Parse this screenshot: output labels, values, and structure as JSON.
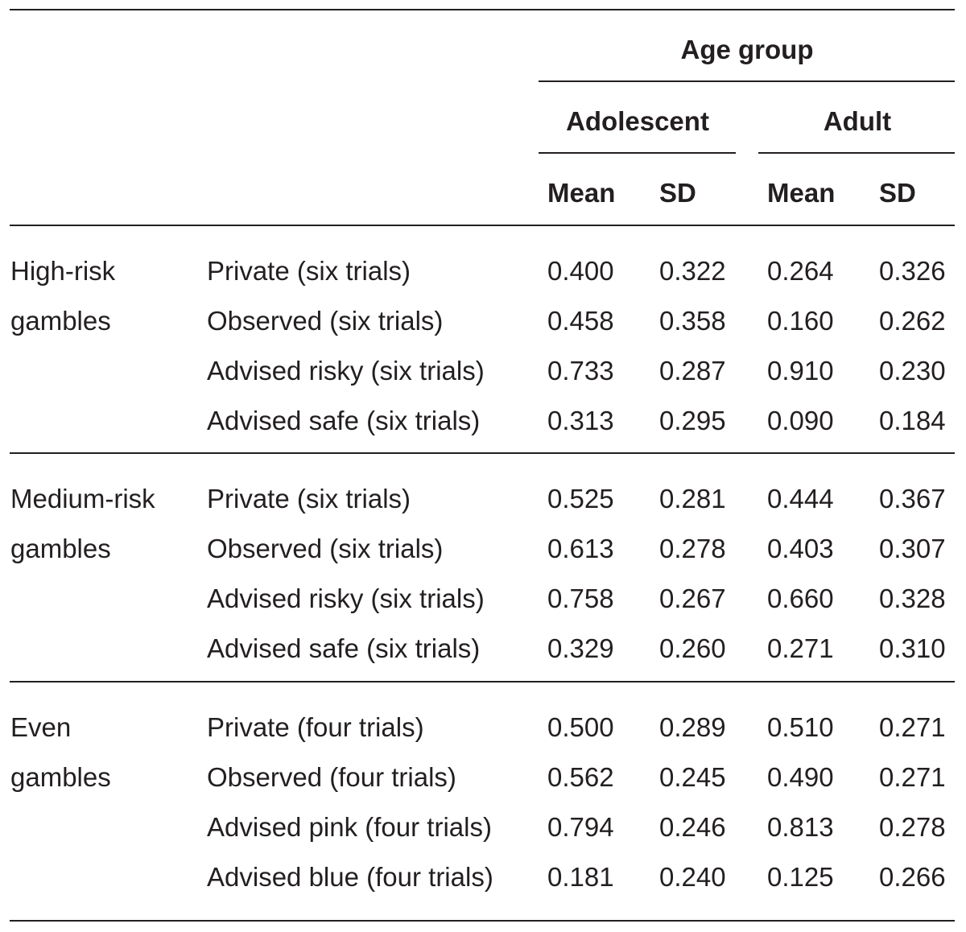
{
  "header": {
    "age_group": "Age group",
    "adolescent": "Adolescent",
    "adult": "Adult",
    "adol_mean": "Mean",
    "adol_sd": "SD",
    "adult_mean": "Mean",
    "adult_sd": "SD"
  },
  "groups": [
    {
      "label_line1": "High-risk",
      "label_line2": "gambles",
      "rows": [
        {
          "condition": "Private (six trials)",
          "adol_mean": "0.400",
          "adol_sd": "0.322",
          "adult_mean": "0.264",
          "adult_sd": "0.326"
        },
        {
          "condition": "Observed (six trials)",
          "adol_mean": "0.458",
          "adol_sd": "0.358",
          "adult_mean": "0.160",
          "adult_sd": "0.262"
        },
        {
          "condition": "Advised risky (six trials)",
          "adol_mean": "0.733",
          "adol_sd": "0.287",
          "adult_mean": "0.910",
          "adult_sd": "0.230"
        },
        {
          "condition": "Advised safe (six trials)",
          "adol_mean": "0.313",
          "adol_sd": "0.295",
          "adult_mean": "0.090",
          "adult_sd": "0.184"
        }
      ]
    },
    {
      "label_line1": "Medium-risk",
      "label_line2": "gambles",
      "rows": [
        {
          "condition": "Private (six trials)",
          "adol_mean": "0.525",
          "adol_sd": "0.281",
          "adult_mean": "0.444",
          "adult_sd": "0.367"
        },
        {
          "condition": "Observed (six trials)",
          "adol_mean": "0.613",
          "adol_sd": "0.278",
          "adult_mean": "0.403",
          "adult_sd": "0.307"
        },
        {
          "condition": "Advised risky (six trials)",
          "adol_mean": "0.758",
          "adol_sd": "0.267",
          "adult_mean": "0.660",
          "adult_sd": "0.328"
        },
        {
          "condition": "Advised safe (six trials)",
          "adol_mean": "0.329",
          "adol_sd": "0.260",
          "adult_mean": "0.271",
          "adult_sd": "0.310"
        }
      ]
    },
    {
      "label_line1": "Even",
      "label_line2": "gambles",
      "rows": [
        {
          "condition": "Private (four trials)",
          "adol_mean": "0.500",
          "adol_sd": "0.289",
          "adult_mean": "0.510",
          "adult_sd": "0.271"
        },
        {
          "condition": "Observed (four trials)",
          "adol_mean": "0.562",
          "adol_sd": "0.245",
          "adult_mean": "0.490",
          "adult_sd": "0.271"
        },
        {
          "condition": "Advised pink (four trials)",
          "adol_mean": "0.794",
          "adol_sd": "0.246",
          "adult_mean": "0.813",
          "adult_sd": "0.278"
        },
        {
          "condition": "Advised blue (four trials)",
          "adol_mean": "0.181",
          "adol_sd": "0.240",
          "adult_mean": "0.125",
          "adult_sd": "0.266"
        }
      ]
    }
  ]
}
